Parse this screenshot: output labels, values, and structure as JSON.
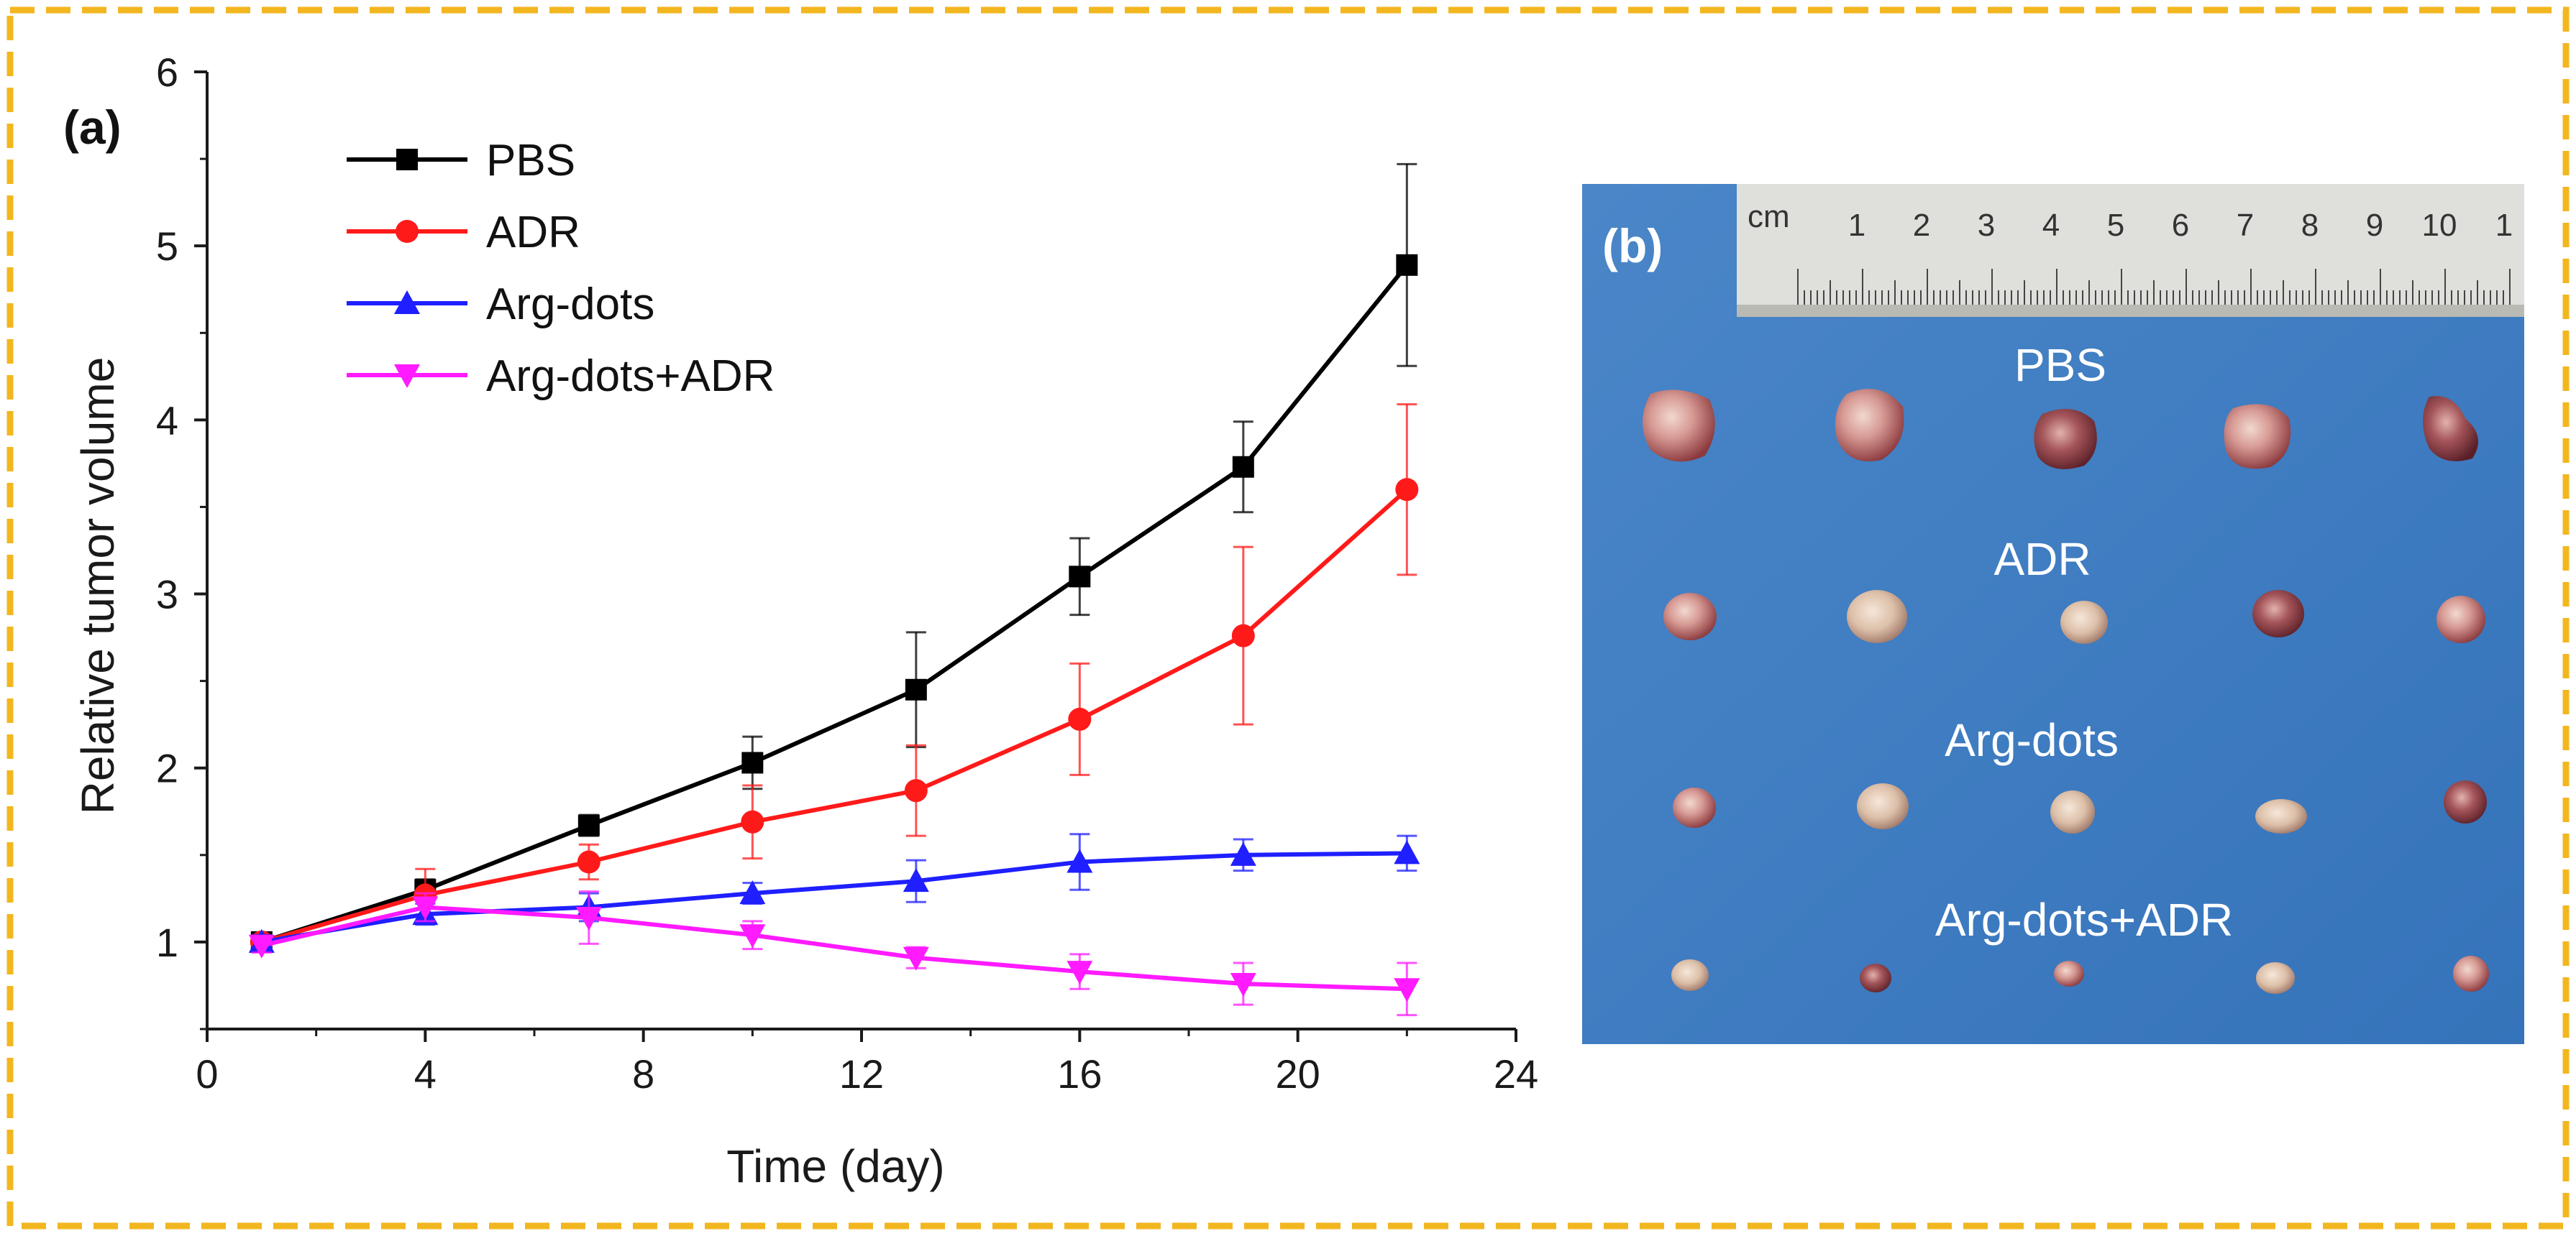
{
  "frame": {
    "border_color": "#F2B61F"
  },
  "chart_data": {
    "type": "line",
    "panel_label": "(a)",
    "title": "",
    "xlabel": "Time (day)",
    "ylabel": "Relative tumor volume",
    "xlim": [
      0,
      24
    ],
    "ylim": [
      0.5,
      6
    ],
    "xticks": [
      0,
      4,
      8,
      12,
      16,
      20,
      24
    ],
    "yticks": [
      1,
      2,
      3,
      4,
      5,
      6
    ],
    "x": [
      1,
      4,
      7,
      10,
      13,
      16,
      19,
      22
    ],
    "legend_position": "top-left",
    "series": [
      {
        "name": "PBS",
        "color": "#000000",
        "marker": "square",
        "values": [
          1.0,
          1.3,
          1.67,
          2.03,
          2.45,
          3.1,
          3.73,
          4.89
        ],
        "errors": [
          0.04,
          0.06,
          0.06,
          0.15,
          0.33,
          0.22,
          0.26,
          0.58
        ]
      },
      {
        "name": "ADR",
        "color": "#FF1A1A",
        "marker": "circle",
        "values": [
          1.0,
          1.27,
          1.46,
          1.69,
          1.87,
          2.28,
          2.76,
          3.6
        ],
        "errors": [
          0.04,
          0.15,
          0.1,
          0.21,
          0.26,
          0.32,
          0.51,
          0.49
        ]
      },
      {
        "name": "Arg-dots",
        "color": "#1F1FFF",
        "marker": "triangle-up",
        "values": [
          1.0,
          1.16,
          1.2,
          1.28,
          1.35,
          1.46,
          1.5,
          1.51
        ],
        "errors": [
          0.04,
          0.06,
          0.08,
          0.06,
          0.12,
          0.16,
          0.09,
          0.1
        ]
      },
      {
        "name": "Arg-dots+ADR",
        "color": "#FF1AFF",
        "marker": "triangle-down",
        "values": [
          0.98,
          1.2,
          1.14,
          1.04,
          0.91,
          0.83,
          0.76,
          0.73
        ],
        "errors": [
          0.04,
          0.08,
          0.15,
          0.08,
          0.06,
          0.1,
          0.12,
          0.15
        ]
      }
    ]
  },
  "photo": {
    "panel_label": "(b)",
    "group_labels": [
      "PBS",
      "ADR",
      "Arg-dots",
      "Arg-dots+ADR"
    ],
    "ruler": {
      "unit": "cm",
      "numbers": [
        "1",
        "2",
        "3",
        "4",
        "5",
        "6",
        "7",
        "8",
        "9",
        "10",
        "1"
      ]
    }
  }
}
